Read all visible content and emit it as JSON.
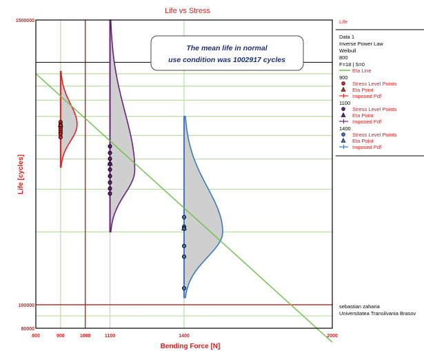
{
  "chart_data": {
    "type": "scatter",
    "title": "Life vs Stress",
    "xlabel": "Bending Force [N]",
    "ylabel": "Life [cycles]",
    "x_ticks": [
      {
        "value": 800,
        "label": "800"
      },
      {
        "value": 900,
        "label": "900"
      },
      {
        "value": 1000,
        "label": "1000"
      },
      {
        "value": 1100,
        "label": "1100"
      },
      {
        "value": 1400,
        "label": "1400"
      },
      {
        "value": 2000,
        "label": "2000"
      }
    ],
    "y_ticks": [
      {
        "value": 1500000,
        "label": "1500000"
      },
      {
        "value": 100000,
        "label": "100000"
      },
      {
        "value": 80000,
        "label": "80000"
      }
    ],
    "xlim": [
      800,
      2000
    ],
    "ylim": [
      80000,
      1500000
    ],
    "y_scale": "log",
    "annotation": {
      "line1": "The mean life in normal",
      "line2": "use condition was 1002917 cycles"
    },
    "reference_lines": {
      "vertical_x": 1000,
      "horizontal_y": 100000,
      "mean_life_y": 1002917
    },
    "eta_line": {
      "x": [
        800,
        2000
      ],
      "y": [
        900000,
        70000
      ]
    },
    "series": [
      {
        "name": "900",
        "stress": 900,
        "points": [
          568000,
          553000,
          540000,
          528000,
          517000,
          507000,
          492000
        ],
        "eta": 553000,
        "pdf_range": [
          370000,
          920000
        ],
        "pdf_mode": 555000,
        "pdf_width": 24
      },
      {
        "name": "1100",
        "stress": 1100,
        "points": [
          451000,
          424000,
          401000,
          382000,
          362000,
          340000,
          320000,
          302000,
          288000
        ],
        "eta": 383000,
        "pdf_range": [
          200000,
          1500000
        ],
        "pdf_mode": 360000,
        "pdf_width": 36
      },
      {
        "name": "1400",
        "stress": 1400,
        "points": [
          230000,
          210000,
          206000,
          175000,
          158000,
          117000
        ],
        "eta": 207000,
        "pdf_range": [
          107000,
          600000
        ],
        "pdf_mode": 200000,
        "pdf_width": 56
      }
    ],
    "legend": {
      "placement": "right",
      "header": "Life",
      "dataset": [
        "Data 1",
        "Inverse Power Law",
        "Weibull",
        "800",
        "F=18 | S=0"
      ],
      "eta_line": "Eta Line",
      "items": [
        "Stress Level Points",
        "Eta Point",
        "Imposed Pdf"
      ],
      "groups": [
        "900",
        "1100",
        "1400"
      ]
    },
    "footer": {
      "line1": "sebastian zaharia",
      "line2": "Universitatea Transilvania Brasov"
    },
    "colors": {
      "s900": "#e02424",
      "s1100": "#6a1f7a",
      "s1400": "#3a78c0",
      "eta": "#6bbf45",
      "grid": "#b9dca3",
      "ref": "#b22222"
    }
  }
}
